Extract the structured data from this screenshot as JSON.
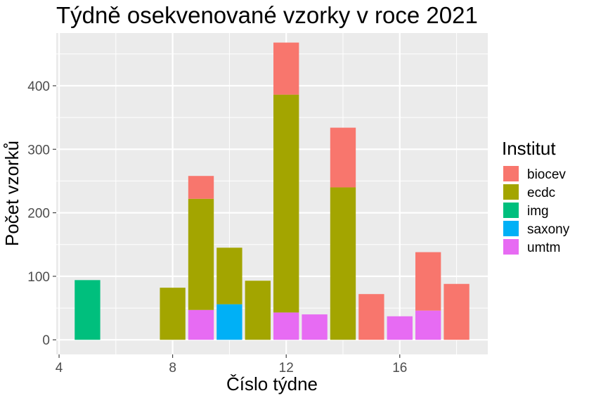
{
  "chart_data": {
    "type": "bar",
    "stacked": true,
    "title": "Týdně osekvenované vzorky v roce 2021",
    "xlabel": "Číslo týdne",
    "ylabel": "Počet vzorků",
    "xlim": [
      3.9,
      19.1
    ],
    "ylim": [
      -23,
      483
    ],
    "x_ticks": [
      4,
      8,
      12,
      16
    ],
    "y_ticks": [
      0,
      100,
      200,
      300,
      400
    ],
    "grid": true,
    "legend_title": "Institut",
    "legend_position": "right",
    "series": [
      {
        "name": "biocev",
        "color": "#F8766D",
        "points": [
          [
            9,
            36
          ],
          [
            12,
            82
          ],
          [
            14,
            94
          ],
          [
            15,
            72
          ],
          [
            17,
            92
          ],
          [
            18,
            88
          ]
        ]
      },
      {
        "name": "ecdc",
        "color": "#A3A500",
        "points": [
          [
            8,
            82
          ],
          [
            9,
            175
          ],
          [
            10,
            89
          ],
          [
            11,
            93
          ],
          [
            12,
            343
          ],
          [
            14,
            240
          ]
        ]
      },
      {
        "name": "img",
        "color": "#00BF7D",
        "points": [
          [
            5,
            94
          ]
        ]
      },
      {
        "name": "saxony",
        "color": "#00B0F6",
        "points": [
          [
            10,
            56
          ]
        ]
      },
      {
        "name": "umtm",
        "color": "#E76BF3",
        "points": [
          [
            9,
            47
          ],
          [
            12,
            43
          ],
          [
            13,
            40
          ],
          [
            16,
            37
          ],
          [
            17,
            46
          ]
        ]
      }
    ]
  }
}
